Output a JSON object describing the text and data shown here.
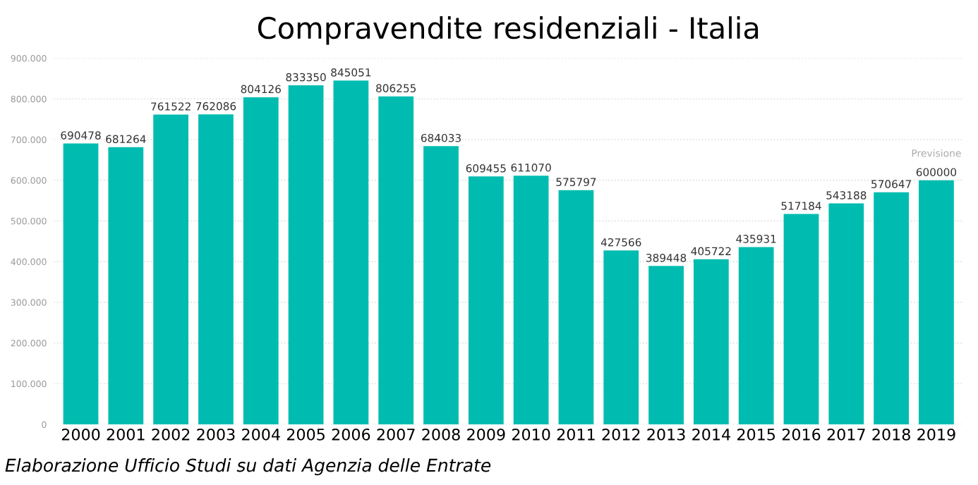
{
  "chart_data": {
    "type": "bar",
    "title": "Compravendite residenziali - Italia",
    "categories": [
      "2000",
      "2001",
      "2002",
      "2003",
      "2004",
      "2005",
      "2006",
      "2007",
      "2008",
      "2009",
      "2010",
      "2011",
      "2012",
      "2013",
      "2014",
      "2015",
      "2016",
      "2017",
      "2018",
      "2019"
    ],
    "values": [
      690478,
      681264,
      761522,
      762086,
      804126,
      833350,
      845051,
      806255,
      684033,
      609455,
      611070,
      575797,
      427566,
      389448,
      405722,
      435931,
      517184,
      543188,
      570647,
      600000
    ],
    "color": "#00bcb0",
    "data_labels": true,
    "ylim": [
      0,
      900000
    ],
    "yticks": [
      {
        "value": 0,
        "label": "0"
      },
      {
        "value": 100000,
        "label": "100.000"
      },
      {
        "value": 200000,
        "label": "200.000"
      },
      {
        "value": 300000,
        "label": "300.000"
      },
      {
        "value": 400000,
        "label": "400.000"
      },
      {
        "value": 500000,
        "label": "500.000"
      },
      {
        "value": 600000,
        "label": "600.000"
      },
      {
        "value": 700000,
        "label": "700.000"
      },
      {
        "value": 800000,
        "label": "800.000"
      },
      {
        "value": 900000,
        "label": "900.000"
      }
    ],
    "grid": "y",
    "annotations": [
      {
        "text": "Previsione",
        "x": "2019",
        "y": 600000
      },
      "Elaborazione Ufficio Studi su dati Agenzia delle Entrate"
    ]
  }
}
